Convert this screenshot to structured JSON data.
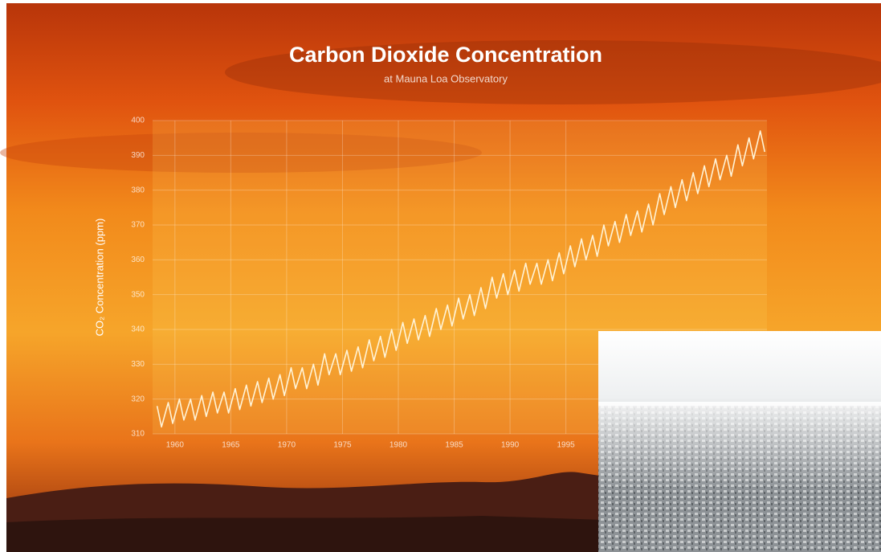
{
  "chart_data": {
    "type": "line",
    "title": "Carbon Dioxide Concentration",
    "subtitle": "at Mauna Loa Observatory",
    "y_label": "CO₂ Concentration (ppm)",
    "xlim": [
      1958,
      2013
    ],
    "xticks": [
      1960,
      1965,
      1970,
      1975,
      1980,
      1985,
      1990,
      1995
    ],
    "ylim": [
      310,
      400
    ],
    "yticks": [
      310,
      320,
      330,
      340,
      350,
      360,
      370,
      380,
      390,
      400
    ],
    "grid": true,
    "series": [
      {
        "color": "#fff3d6",
        "x": [
          1958.4,
          1958.8,
          1959.4,
          1959.8,
          1960.4,
          1960.8,
          1961.4,
          1961.8,
          1962.4,
          1962.8,
          1963.4,
          1963.8,
          1964.4,
          1964.8,
          1965.4,
          1965.8,
          1966.4,
          1966.8,
          1967.4,
          1967.8,
          1968.4,
          1968.8,
          1969.4,
          1969.8,
          1970.4,
          1970.8,
          1971.4,
          1971.8,
          1972.4,
          1972.8,
          1973.4,
          1973.8,
          1974.4,
          1974.8,
          1975.4,
          1975.8,
          1976.4,
          1976.8,
          1977.4,
          1977.8,
          1978.4,
          1978.8,
          1979.4,
          1979.8,
          1980.4,
          1980.8,
          1981.4,
          1981.8,
          1982.4,
          1982.8,
          1983.4,
          1983.8,
          1984.4,
          1984.8,
          1985.4,
          1985.8,
          1986.4,
          1986.8,
          1987.4,
          1987.8,
          1988.4,
          1988.8,
          1989.4,
          1989.8,
          1990.4,
          1990.8,
          1991.4,
          1991.8,
          1992.4,
          1992.8,
          1993.4,
          1993.8,
          1994.4,
          1994.8,
          1995.4,
          1995.8,
          1996.4,
          1996.8,
          1997.4,
          1997.8,
          1998.4,
          1998.8,
          1999.4,
          1999.8,
          2000.4,
          2000.8,
          2001.4,
          2001.8,
          2002.4,
          2002.8,
          2003.4,
          2003.8,
          2004.4,
          2004.8,
          2005.4,
          2005.8,
          2006.4,
          2006.8,
          2007.4,
          2007.8,
          2008.4,
          2008.8,
          2009.4,
          2009.8,
          2010.4,
          2010.8,
          2011.4,
          2011.8,
          2012.4,
          2012.8
        ],
        "values": [
          318,
          312,
          319,
          313,
          320,
          314,
          320,
          314,
          321,
          315,
          322,
          316,
          322,
          316,
          323,
          317,
          324,
          318,
          325,
          319,
          326,
          320,
          327,
          321,
          329,
          323,
          329,
          323,
          330,
          324,
          333,
          327,
          333,
          327,
          334,
          328,
          335,
          329,
          337,
          331,
          338,
          332,
          340,
          334,
          342,
          336,
          343,
          337,
          344,
          338,
          346,
          340,
          347,
          341,
          349,
          343,
          350,
          344,
          352,
          346,
          355,
          349,
          356,
          350,
          357,
          351,
          359,
          353,
          359,
          353,
          360,
          354,
          362,
          356,
          364,
          358,
          366,
          360,
          367,
          361,
          370,
          364,
          371,
          365,
          373,
          367,
          374,
          368,
          376,
          370,
          379,
          373,
          381,
          375,
          383,
          377,
          385,
          379,
          387,
          381,
          389,
          383,
          390,
          384,
          393,
          387,
          395,
          389,
          397,
          391
        ]
      }
    ]
  }
}
